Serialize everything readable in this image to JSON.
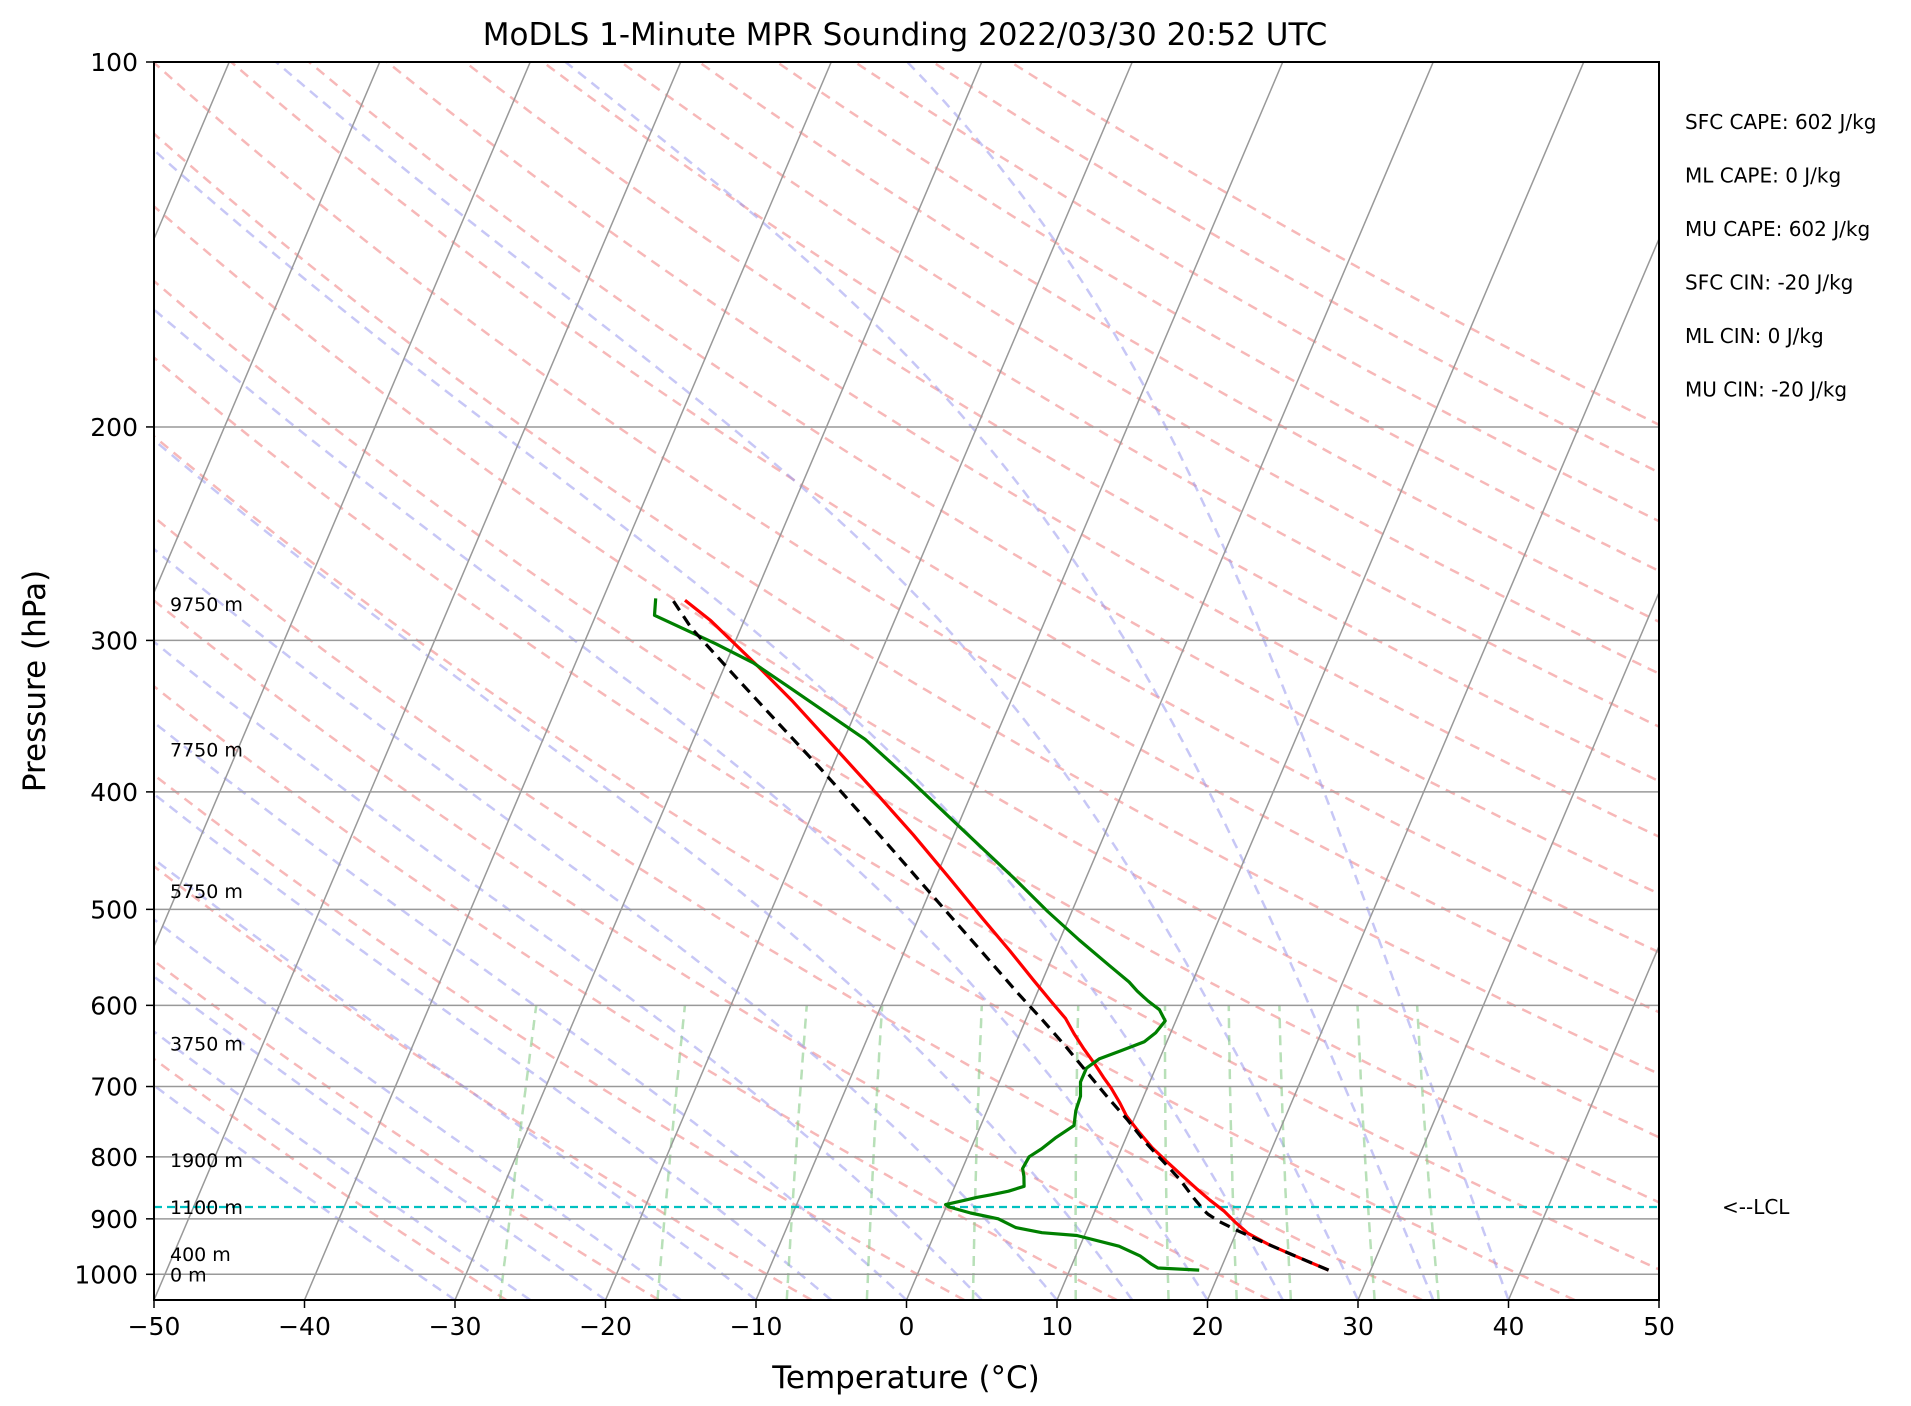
{
  "chart_data": {
    "type": "line",
    "title": "MoDLS 1-Minute MPR Sounding 2022/03/30 20:52 UTC",
    "xlabel": "Temperature (°C)",
    "ylabel": "Pressure (hPa)",
    "xlim": [
      -50,
      50
    ],
    "ylim": [
      1050,
      100
    ],
    "y_scale": "log",
    "grid": true,
    "x_ticks": [
      -50,
      -40,
      -30,
      -20,
      -10,
      0,
      10,
      20,
      30,
      40,
      50
    ],
    "x_tick_labels": [
      "−50",
      "−40",
      "−30",
      "−20",
      "−10",
      "0",
      "10",
      "20",
      "30",
      "40",
      "50"
    ],
    "y_ticks": [
      1000,
      900,
      800,
      700,
      600,
      500,
      400,
      300,
      200,
      100
    ],
    "y_tick_labels": [
      "1000",
      "900",
      "800",
      "700",
      "600",
      "500",
      "400",
      "300",
      "200",
      "100"
    ],
    "series": [
      {
        "color": "#ff0000",
        "style": "solid",
        "points": [
          [
            27.2,
            992
          ],
          [
            26.0,
            980
          ],
          [
            24.0,
            960
          ],
          [
            22.5,
            945
          ],
          [
            20.8,
            925
          ],
          [
            19.6,
            905
          ],
          [
            18.6,
            887
          ],
          [
            17.3,
            868
          ],
          [
            16.2,
            851
          ],
          [
            15.5,
            840
          ],
          [
            14.6,
            826
          ],
          [
            13.3,
            806
          ],
          [
            12.0,
            786
          ],
          [
            10.8,
            765
          ],
          [
            9.4,
            740
          ],
          [
            8.6,
            722
          ],
          [
            7.6,
            702
          ],
          [
            6.8,
            688
          ],
          [
            5.8,
            670
          ],
          [
            4.7,
            652
          ],
          [
            3.6,
            633
          ],
          [
            2.6,
            615
          ],
          [
            1.2,
            596
          ],
          [
            -0.6,
            572
          ],
          [
            -3.0,
            541
          ],
          [
            -5.8,
            508
          ],
          [
            -9.0,
            472
          ],
          [
            -12.7,
            434
          ],
          [
            -16.8,
            397
          ],
          [
            -20.6,
            366
          ],
          [
            -24.6,
            336
          ],
          [
            -27.8,
            315
          ],
          [
            -32.2,
            289
          ],
          [
            -34.5,
            278
          ]
        ]
      },
      {
        "color": "#008000",
        "style": "solid",
        "points": [
          [
            18.6,
            992
          ],
          [
            15.8,
            988
          ],
          [
            15.2,
            980
          ],
          [
            14.3,
            966
          ],
          [
            12.6,
            948
          ],
          [
            9.5,
            929
          ],
          [
            7.1,
            924
          ],
          [
            5.2,
            915
          ],
          [
            3.8,
            900
          ],
          [
            1.8,
            890
          ],
          [
            0.2,
            880
          ],
          [
            -0.1,
            876
          ],
          [
            1.0,
            869
          ],
          [
            1.8,
            864
          ],
          [
            2.6,
            860
          ],
          [
            3.7,
            854
          ],
          [
            4.6,
            846
          ],
          [
            4.3,
            830
          ],
          [
            4.0,
            818
          ],
          [
            4.1,
            800
          ],
          [
            4.7,
            788
          ],
          [
            5.3,
            772
          ],
          [
            6.2,
            754
          ],
          [
            5.9,
            733
          ],
          [
            5.8,
            713
          ],
          [
            5.4,
            694
          ],
          [
            5.4,
            676
          ],
          [
            6.0,
            664
          ],
          [
            7.2,
            654
          ],
          [
            8.5,
            643
          ],
          [
            9.0,
            632
          ],
          [
            9.3,
            618
          ],
          [
            8.6,
            605
          ],
          [
            7.6,
            595
          ],
          [
            6.6,
            584
          ],
          [
            5.8,
            574
          ],
          [
            4.0,
            556
          ],
          [
            1.3,
            530
          ],
          [
            -1.6,
            502
          ],
          [
            -4.7,
            472
          ],
          [
            -9.3,
            432
          ],
          [
            -14.6,
            390
          ],
          [
            -18.6,
            362
          ],
          [
            -21.2,
            348
          ],
          [
            -25.3,
            327
          ],
          [
            -28.2,
            313
          ],
          [
            -31.2,
            302
          ],
          [
            -36.1,
            286
          ],
          [
            -36.5,
            277
          ]
        ]
      },
      {
        "color": "#000000",
        "style": "dashed",
        "points": [
          [
            27.2,
            992
          ],
          [
            26.0,
            980
          ],
          [
            24.4,
            964
          ],
          [
            22.8,
            948
          ],
          [
            21.6,
            936
          ],
          [
            20.0,
            920
          ],
          [
            18.6,
            905
          ],
          [
            17.6,
            892
          ],
          [
            17.3,
            887
          ],
          [
            16.2,
            865
          ],
          [
            14.8,
            836
          ],
          [
            13.2,
            808
          ],
          [
            11.4,
            778
          ],
          [
            9.6,
            746
          ],
          [
            7.6,
            714
          ],
          [
            5.6,
            682
          ],
          [
            3.5,
            650
          ],
          [
            1.2,
            618
          ],
          [
            -1.3,
            586
          ],
          [
            -4.0,
            552
          ],
          [
            -6.9,
            518
          ],
          [
            -10.0,
            484
          ],
          [
            -13.4,
            449
          ],
          [
            -17.0,
            415
          ],
          [
            -20.7,
            383
          ],
          [
            -24.7,
            352
          ],
          [
            -28.9,
            322
          ],
          [
            -33.3,
            293
          ],
          [
            -35.3,
            278
          ]
        ]
      }
    ],
    "lcl_pressure": 880,
    "lcl_label": "<--LCL",
    "height_labels": [
      {
        "pressure": 1000,
        "text": "0 m"
      },
      {
        "pressure": 962,
        "text": "400 m"
      },
      {
        "pressure": 880,
        "text": "1100 m"
      },
      {
        "pressure": 805,
        "text": "1900 m"
      },
      {
        "pressure": 645,
        "text": "3750 m"
      },
      {
        "pressure": 483,
        "text": "5750 m"
      },
      {
        "pressure": 369,
        "text": "7750 m"
      },
      {
        "pressure": 280,
        "text": "9750 m"
      }
    ],
    "stats": [
      "SFC CAPE: 602 J/kg",
      "ML CAPE: 0 J/kg",
      "MU CAPE: 602 J/kg",
      "SFC CIN: -20 J/kg",
      "ML CIN: 0 J/kg",
      "MU CIN: -20 J/kg"
    ],
    "colors": {
      "temperature": "#ff0000",
      "dewpoint": "#008000",
      "parcel": "#000000",
      "isotherms": "#999999",
      "dry_adiabats": "#f4a0a0",
      "moist_adiabats": "#9999ee",
      "mixing_ratio": "#88cc88",
      "lcl_line": "#00c0c0"
    }
  }
}
